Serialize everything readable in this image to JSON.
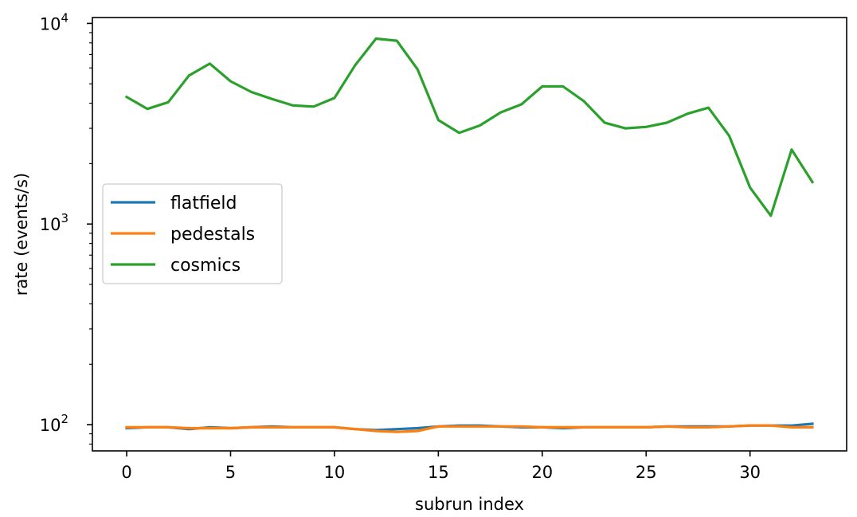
{
  "chart_data": {
    "type": "line",
    "xlabel": "subrun index",
    "ylabel": "rate (events/s)",
    "yscale": "log",
    "xlim": [
      -1.65,
      34.65
    ],
    "ylim": [
      74,
      10700
    ],
    "xticks": [
      0,
      5,
      10,
      15,
      20,
      25,
      30
    ],
    "yticks": [
      {
        "value": 100,
        "base": "10",
        "exp": "2"
      },
      {
        "value": 1000,
        "base": "10",
        "exp": "3"
      },
      {
        "value": 10000,
        "base": "10",
        "exp": "4"
      }
    ],
    "grid": false,
    "legend_position": "center-left",
    "x": [
      0,
      1,
      2,
      3,
      4,
      5,
      6,
      7,
      8,
      9,
      10,
      11,
      12,
      13,
      14,
      15,
      16,
      17,
      18,
      19,
      20,
      21,
      22,
      23,
      24,
      25,
      26,
      27,
      28,
      29,
      30,
      31,
      32,
      33
    ],
    "series": [
      {
        "name": "flatfield",
        "color": "#1f77b4",
        "values": [
          96,
          97,
          97,
          95,
          97,
          96,
          97,
          98,
          97,
          97,
          97,
          95,
          94,
          95,
          96,
          98,
          99,
          99,
          98,
          97,
          97,
          96,
          97,
          97,
          97,
          97,
          98,
          98,
          98,
          98,
          99,
          99,
          99,
          101
        ]
      },
      {
        "name": "pedestals",
        "color": "#ff7f0e",
        "values": [
          97,
          97,
          97,
          96,
          96,
          96,
          97,
          97,
          97,
          97,
          97,
          95,
          93,
          92,
          93,
          98,
          98,
          98,
          98,
          98,
          97,
          97,
          97,
          97,
          97,
          97,
          98,
          97,
          97,
          98,
          99,
          99,
          97,
          97
        ]
      },
      {
        "name": "cosmics",
        "color": "#2ca02c",
        "values": [
          4300,
          3750,
          4050,
          5500,
          6300,
          5150,
          4550,
          4200,
          3900,
          3850,
          4250,
          6200,
          8400,
          8200,
          5900,
          3300,
          2850,
          3100,
          3600,
          3950,
          4850,
          4850,
          4100,
          3200,
          3000,
          3050,
          3200,
          3550,
          3800,
          2750,
          1520,
          1100,
          2350,
          1620
        ]
      }
    ]
  }
}
